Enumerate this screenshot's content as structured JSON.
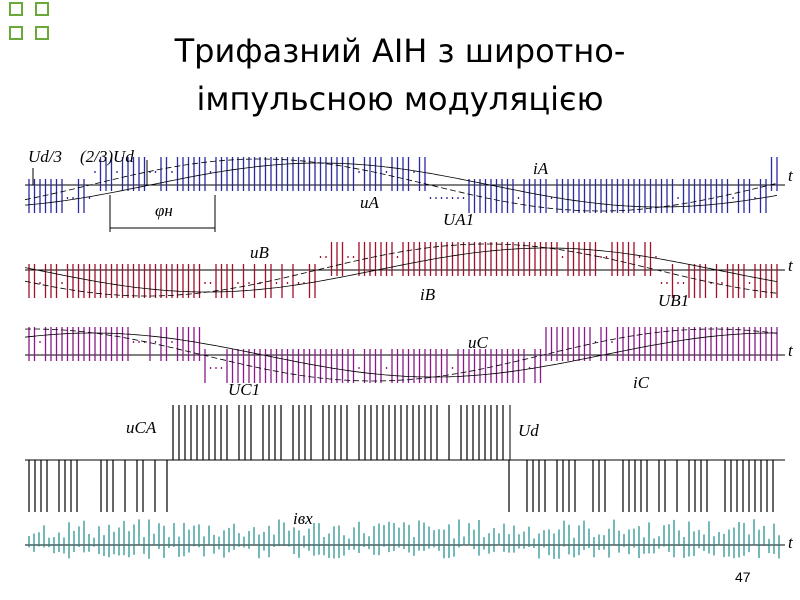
{
  "header": {
    "title_lines": [
      "Трифазний АІН з широтно-",
      "імпульсною модуляцією"
    ]
  },
  "labels": {
    "ud3": "Ud/3",
    "ud23": "(2/3)Ud",
    "phi": "φн",
    "iA": "iA",
    "uA": "uA",
    "UA1": "UA1",
    "uB": "uB",
    "iB": "iB",
    "UB1": "UB1",
    "uC": "uC",
    "iC": "iC",
    "UC1": "UC1",
    "uCA": "uCA",
    "Ud": "Ud",
    "ivx": "iвх"
  },
  "axis_labels": [
    "t",
    "t",
    "t",
    "t"
  ],
  "page_number": "47"
}
